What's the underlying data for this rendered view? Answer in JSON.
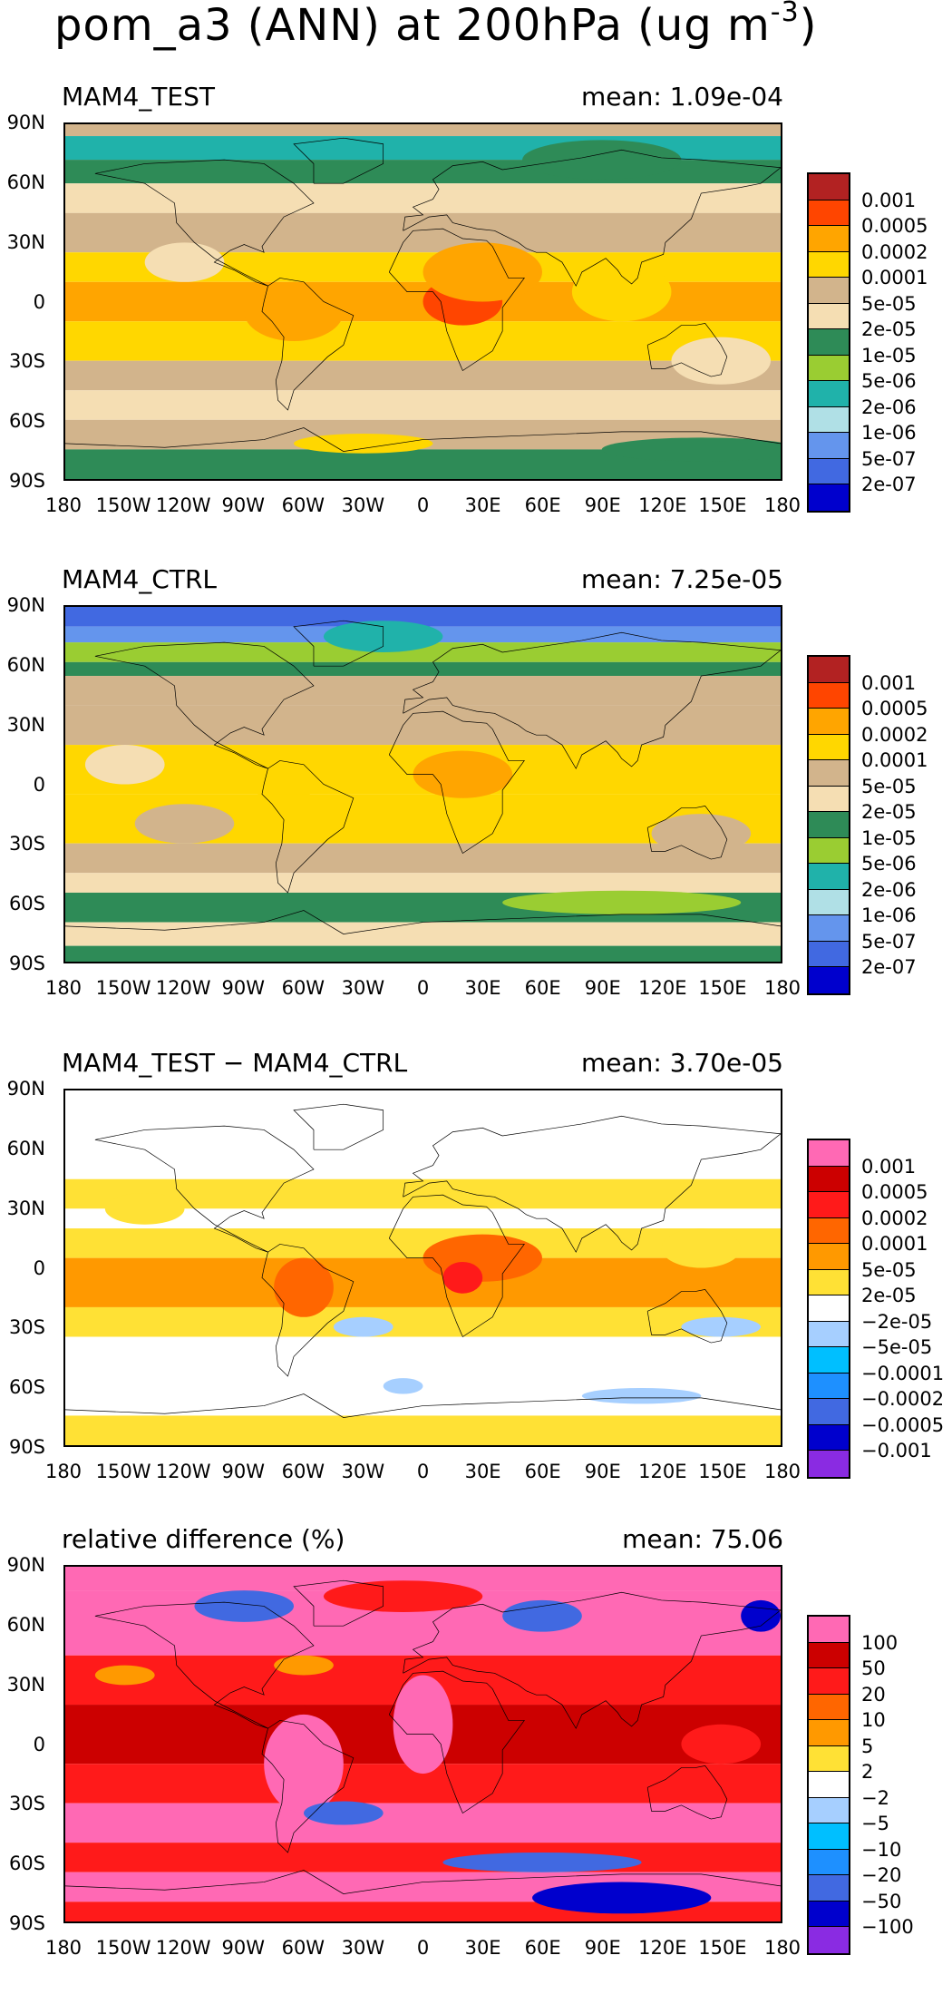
{
  "title": {
    "main": "pom_a3 (ANN) at 200hPa (ug m",
    "exp": "-3",
    "close": ")"
  },
  "axes": {
    "lat_labels": [
      "90N",
      "60N",
      "30N",
      "0",
      "30S",
      "60S",
      "90S"
    ],
    "lon_labels": [
      "180",
      "150W",
      "120W",
      "90W",
      "60W",
      "30W",
      "0",
      "30E",
      "60E",
      "90E",
      "120E",
      "150E",
      "180"
    ]
  },
  "chart_data": [
    {
      "type": "heatmap",
      "title": "MAM4_TEST",
      "mean_label": "mean: 1.09e-04",
      "colorbar": {
        "colors": [
          "#b22222",
          "#ff4500",
          "#ffa500",
          "#ffd700",
          "#d2b48c",
          "#f5deb3",
          "#2e8b57",
          "#9acd32",
          "#20b2aa",
          "#b0e0e6",
          "#6495ed",
          "#4169e1",
          "#0000cd"
        ],
        "labels": [
          "0.001",
          "0.0005",
          "0.0002",
          "0.0001",
          "5e-05",
          "2e-05",
          "1e-05",
          "5e-06",
          "2e-06",
          "1e-06",
          "5e-07",
          "2e-07"
        ]
      },
      "bands": [
        [
          90,
          84,
          4
        ],
        [
          84,
          72,
          8
        ],
        [
          72,
          60,
          6
        ],
        [
          60,
          45,
          5
        ],
        [
          45,
          25,
          4
        ],
        [
          25,
          10,
          3
        ],
        [
          10,
          -10,
          2
        ],
        [
          -10,
          -30,
          3
        ],
        [
          -30,
          -45,
          4
        ],
        [
          -45,
          -60,
          5
        ],
        [
          -60,
          -75,
          4
        ],
        [
          -75,
          -90,
          6
        ]
      ],
      "blobs": [
        [
          20,
          0,
          20,
          12,
          1
        ],
        [
          -65,
          -5,
          25,
          15,
          2
        ],
        [
          30,
          15,
          30,
          15,
          2
        ],
        [
          100,
          5,
          25,
          15,
          3
        ],
        [
          -120,
          20,
          20,
          10,
          5
        ],
        [
          150,
          -30,
          25,
          12,
          5
        ],
        [
          90,
          72,
          40,
          10,
          6
        ],
        [
          -30,
          -72,
          35,
          5,
          3
        ],
        [
          140,
          -75,
          50,
          6,
          6
        ]
      ]
    },
    {
      "type": "heatmap",
      "title": "MAM4_CTRL",
      "mean_label": "mean: 7.25e-05",
      "colorbar": {
        "colors": [
          "#b22222",
          "#ff4500",
          "#ffa500",
          "#ffd700",
          "#d2b48c",
          "#f5deb3",
          "#2e8b57",
          "#9acd32",
          "#20b2aa",
          "#b0e0e6",
          "#6495ed",
          "#4169e1",
          "#0000cd"
        ],
        "labels": [
          "0.001",
          "0.0005",
          "0.0002",
          "0.0001",
          "5e-05",
          "2e-05",
          "1e-05",
          "5e-06",
          "2e-06",
          "1e-06",
          "5e-07",
          "2e-07"
        ]
      },
      "bands": [
        [
          90,
          80,
          11
        ],
        [
          80,
          72,
          10
        ],
        [
          72,
          62,
          7
        ],
        [
          62,
          55,
          6
        ],
        [
          55,
          40,
          4
        ],
        [
          40,
          20,
          4
        ],
        [
          20,
          -5,
          3
        ],
        [
          -5,
          -30,
          3
        ],
        [
          -30,
          -45,
          4
        ],
        [
          -45,
          -55,
          5
        ],
        [
          -55,
          -70,
          6
        ],
        [
          -70,
          -82,
          5
        ],
        [
          -82,
          -90,
          6
        ]
      ],
      "blobs": [
        [
          20,
          5,
          25,
          12,
          2
        ],
        [
          -70,
          0,
          15,
          10,
          3
        ],
        [
          140,
          -25,
          25,
          10,
          4
        ],
        [
          -150,
          10,
          20,
          10,
          5
        ],
        [
          -120,
          -20,
          25,
          10,
          4
        ],
        [
          100,
          -60,
          60,
          6,
          7
        ],
        [
          -20,
          75,
          30,
          8,
          8
        ]
      ]
    },
    {
      "type": "heatmap",
      "title": "MAM4_TEST − MAM4_CTRL",
      "mean_label": "mean: 3.70e-05",
      "colorbar": {
        "colors": [
          "#ff69b4",
          "#cc0000",
          "#ff1a1a",
          "#ff6600",
          "#ff9900",
          "#ffe135",
          "#ffffff",
          "#a6cfff",
          "#00bfff",
          "#1e90ff",
          "#4169e1",
          "#0000cd",
          "#8a2be2"
        ],
        "labels": [
          "0.001",
          "0.0005",
          "0.0002",
          "0.0001",
          "5e-05",
          "2e-05",
          "−2e-05",
          "−5e-05",
          "−0.0001",
          "−0.0002",
          "−0.0005",
          "−0.001"
        ]
      },
      "bands": [
        [
          90,
          45,
          6
        ],
        [
          45,
          30,
          5
        ],
        [
          30,
          20,
          6
        ],
        [
          20,
          5,
          5
        ],
        [
          5,
          -20,
          4
        ],
        [
          -20,
          -35,
          5
        ],
        [
          -35,
          -55,
          6
        ],
        [
          -55,
          -75,
          6
        ],
        [
          -75,
          -90,
          5
        ]
      ],
      "blobs": [
        [
          -60,
          -10,
          15,
          15,
          3
        ],
        [
          30,
          5,
          30,
          12,
          3
        ],
        [
          20,
          -5,
          10,
          8,
          2
        ],
        [
          -30,
          -30,
          15,
          5,
          7
        ],
        [
          150,
          -30,
          20,
          5,
          7
        ],
        [
          -10,
          -60,
          10,
          4,
          7
        ],
        [
          110,
          -65,
          30,
          4,
          7
        ],
        [
          -140,
          30,
          20,
          8,
          5
        ],
        [
          140,
          10,
          20,
          10,
          5
        ]
      ]
    },
    {
      "type": "heatmap",
      "title": "relative difference (%)",
      "mean_label": "mean: 75.06",
      "colorbar": {
        "colors": [
          "#ff69b4",
          "#cc0000",
          "#ff1a1a",
          "#ff6600",
          "#ff9900",
          "#ffe135",
          "#ffffff",
          "#a6cfff",
          "#00bfff",
          "#1e90ff",
          "#4169e1",
          "#0000cd",
          "#8a2be2"
        ],
        "labels": [
          "100",
          "50",
          "20",
          "10",
          "5",
          "2",
          "−2",
          "−5",
          "−10",
          "−20",
          "−50",
          "−100"
        ]
      },
      "bands": [
        [
          90,
          78,
          0
        ],
        [
          78,
          45,
          0
        ],
        [
          45,
          20,
          2
        ],
        [
          20,
          -10,
          1
        ],
        [
          -10,
          -30,
          2
        ],
        [
          -30,
          -50,
          0
        ],
        [
          -50,
          -65,
          2
        ],
        [
          -65,
          -80,
          0
        ],
        [
          -80,
          -90,
          2
        ]
      ],
      "blobs": [
        [
          -60,
          -10,
          20,
          25,
          0
        ],
        [
          -10,
          75,
          40,
          8,
          2
        ],
        [
          -90,
          70,
          25,
          8,
          10
        ],
        [
          60,
          65,
          20,
          8,
          10
        ],
        [
          170,
          65,
          10,
          8,
          11
        ],
        [
          -40,
          -35,
          20,
          6,
          10
        ],
        [
          60,
          -60,
          50,
          5,
          10
        ],
        [
          100,
          -78,
          45,
          8,
          11
        ],
        [
          -150,
          35,
          15,
          5,
          4
        ],
        [
          -60,
          40,
          15,
          5,
          4
        ],
        [
          150,
          0,
          20,
          10,
          2
        ],
        [
          0,
          10,
          15,
          25,
          0
        ]
      ]
    }
  ]
}
